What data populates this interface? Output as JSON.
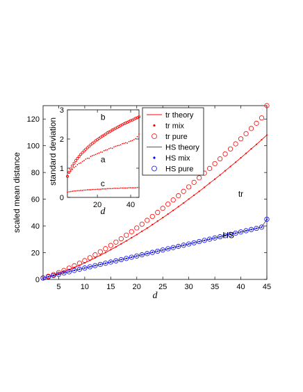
{
  "chart_data": [
    {
      "type": "scatter",
      "xlabel": "d",
      "ylabel": "scaled mean distance",
      "xlim": [
        2,
        45
      ],
      "ylim": [
        0,
        130
      ],
      "xticks": [
        5,
        10,
        15,
        20,
        25,
        30,
        35,
        40,
        45
      ],
      "yticks": [
        0,
        20,
        40,
        60,
        80,
        100,
        120
      ],
      "x": [
        2,
        3,
        4,
        5,
        6,
        7,
        8,
        9,
        10,
        11,
        12,
        13,
        14,
        15,
        16,
        17,
        18,
        19,
        20,
        21,
        22,
        23,
        24,
        25,
        26,
        27,
        28,
        29,
        30,
        31,
        32,
        33,
        34,
        35,
        36,
        37,
        38,
        39,
        40,
        41,
        42,
        43,
        44,
        45
      ],
      "series": [
        {
          "name": "tr theory",
          "style": "line",
          "color": "#ff0000",
          "values": [
            1.0,
            2.0,
            3.2,
            4.5,
            5.9,
            7.4,
            9.0,
            10.6,
            12.4,
            14.2,
            16.1,
            18.1,
            20.1,
            22.2,
            24.3,
            26.6,
            28.8,
            31.2,
            33.5,
            36.0,
            38.4,
            41.0,
            43.6,
            46.2,
            48.9,
            51.6,
            54.4,
            57.2,
            60.1,
            63.0,
            65.9,
            68.9,
            72.0,
            75.0,
            78.1,
            81.3,
            84.5,
            87.7,
            91.0,
            94.3,
            97.7,
            101.0,
            104.5,
            108.0
          ]
        },
        {
          "name": "tr mix",
          "style": "dot",
          "color": "#ff0000",
          "values": [
            1.0,
            2.0,
            3.2,
            4.5,
            5.9,
            7.4,
            9.0,
            10.6,
            12.4,
            14.2,
            16.1,
            18.1,
            20.1,
            22.2,
            24.3,
            26.6,
            28.8,
            31.2,
            33.5,
            36.0,
            38.4,
            41.0,
            43.6,
            46.2,
            48.9,
            51.6,
            54.4,
            57.2,
            60.1,
            63.0,
            65.9,
            68.9,
            72.0,
            75.0,
            78.1,
            81.3,
            84.5,
            87.7,
            91.0,
            94.3,
            97.7,
            101.0,
            104.5,
            108.0
          ]
        },
        {
          "name": "tr pure",
          "style": "circle",
          "color": "#ff0000",
          "values": [
            1.1,
            2.3,
            3.6,
            5.1,
            6.7,
            8.4,
            10.2,
            12.1,
            14.1,
            16.2,
            18.4,
            20.7,
            23.0,
            25.4,
            27.9,
            30.4,
            33.1,
            35.7,
            38.5,
            41.3,
            44.2,
            47.1,
            50.1,
            53.2,
            56.3,
            59.4,
            62.6,
            65.9,
            69.2,
            72.6,
            76.0,
            79.5,
            83.0,
            86.6,
            90.2,
            93.9,
            97.6,
            101.4,
            105.2,
            109.0,
            112.9,
            116.8,
            120.8,
            130.0
          ]
        },
        {
          "name": "HS theory",
          "style": "line",
          "color": "#555555",
          "values": [
            1.0,
            1.9,
            2.9,
            3.8,
            4.8,
            5.7,
            6.7,
            7.6,
            8.5,
            9.4,
            10.3,
            11.2,
            12.1,
            13.0,
            13.9,
            14.8,
            15.7,
            16.6,
            17.5,
            18.4,
            19.3,
            20.2,
            21.1,
            22.0,
            22.9,
            23.8,
            24.7,
            25.6,
            26.5,
            27.4,
            28.3,
            29.2,
            30.1,
            31.0,
            31.9,
            32.8,
            33.7,
            34.6,
            35.5,
            36.4,
            37.3,
            38.2,
            39.1,
            45.0
          ]
        },
        {
          "name": "HS mix",
          "style": "dot",
          "color": "#0000ff",
          "values": [
            1.0,
            1.9,
            2.9,
            3.8,
            4.8,
            5.7,
            6.7,
            7.6,
            8.5,
            9.4,
            10.3,
            11.2,
            12.1,
            13.0,
            13.9,
            14.8,
            15.7,
            16.6,
            17.5,
            18.4,
            19.3,
            20.2,
            21.1,
            22.0,
            22.9,
            23.8,
            24.7,
            25.6,
            26.5,
            27.4,
            28.3,
            29.2,
            30.1,
            31.0,
            31.9,
            32.8,
            33.7,
            34.6,
            35.5,
            36.4,
            37.3,
            38.2,
            39.1,
            45.0
          ]
        },
        {
          "name": "HS pure",
          "style": "circle",
          "color": "#0000ff",
          "values": [
            1.0,
            1.9,
            2.9,
            3.8,
            4.8,
            5.7,
            6.7,
            7.6,
            8.5,
            9.4,
            10.3,
            11.2,
            12.1,
            13.0,
            13.9,
            14.8,
            15.7,
            16.6,
            17.5,
            18.4,
            19.3,
            20.2,
            21.1,
            22.0,
            22.9,
            23.8,
            24.7,
            25.6,
            26.5,
            27.4,
            28.3,
            29.2,
            30.1,
            31.0,
            31.9,
            32.8,
            33.7,
            34.6,
            35.5,
            36.4,
            37.3,
            38.2,
            39.1,
            45.0
          ]
        }
      ],
      "annotations": [
        {
          "text": "tr",
          "x": 39.5,
          "y": 62
        },
        {
          "text": "HS",
          "x": 36.5,
          "y": 31
        }
      ],
      "legend": "top-right",
      "grid": false
    },
    {
      "type": "scatter",
      "xlabel": "d",
      "ylabel": "standard deviation",
      "xlim": [
        2,
        45
      ],
      "ylim": [
        0,
        3
      ],
      "xticks": [
        20,
        40
      ],
      "yticks": [
        0,
        1,
        2,
        3
      ],
      "x": [
        2,
        3,
        4,
        5,
        6,
        7,
        8,
        9,
        10,
        11,
        12,
        13,
        14,
        15,
        16,
        17,
        18,
        19,
        20,
        21,
        22,
        23,
        24,
        25,
        26,
        27,
        28,
        29,
        30,
        31,
        32,
        33,
        34,
        35,
        36,
        37,
        38,
        39,
        40,
        41,
        42,
        43,
        44,
        45
      ],
      "series": [
        {
          "name": "b",
          "style": "circle",
          "color": "#ff0000",
          "values": [
            0.72,
            0.86,
            0.98,
            1.08,
            1.17,
            1.26,
            1.33,
            1.4,
            1.47,
            1.53,
            1.59,
            1.65,
            1.7,
            1.75,
            1.8,
            1.85,
            1.89,
            1.94,
            1.98,
            2.02,
            2.06,
            2.1,
            2.13,
            2.17,
            2.21,
            2.24,
            2.27,
            2.31,
            2.34,
            2.37,
            2.4,
            2.43,
            2.46,
            2.49,
            2.52,
            2.55,
            2.57,
            2.6,
            2.63,
            2.65,
            2.68,
            2.71,
            2.73,
            2.76
          ]
        },
        {
          "name": "a",
          "style": "dot",
          "color": "#ff0000",
          "values": [
            0.75,
            0.83,
            0.9,
            0.96,
            1.02,
            1.06,
            1.12,
            1.16,
            1.18,
            1.23,
            1.26,
            1.31,
            1.34,
            1.34,
            1.4,
            1.43,
            1.45,
            1.47,
            1.5,
            1.52,
            1.55,
            1.55,
            1.6,
            1.62,
            1.63,
            1.67,
            1.69,
            1.68,
            1.73,
            1.75,
            1.77,
            1.78,
            1.8,
            1.84,
            1.85,
            1.87,
            1.86,
            1.91,
            1.93,
            1.95,
            1.98,
            2.01,
            2.08,
            2.17
          ]
        },
        {
          "name": "c",
          "style": "dot",
          "color": "#ff0000",
          "values": [
            0.18,
            0.19,
            0.2,
            0.21,
            0.22,
            0.22,
            0.23,
            0.23,
            0.24,
            0.24,
            0.25,
            0.25,
            0.26,
            0.26,
            0.26,
            0.27,
            0.27,
            0.27,
            0.28,
            0.28,
            0.28,
            0.29,
            0.29,
            0.29,
            0.3,
            0.3,
            0.3,
            0.3,
            0.31,
            0.31,
            0.31,
            0.31,
            0.32,
            0.32,
            0.32,
            0.32,
            0.32,
            0.33,
            0.33,
            0.33,
            0.33,
            0.33,
            0.34,
            0.34
          ]
        }
      ],
      "annotations": [
        {
          "text": "b",
          "x": 22,
          "y": 2.65
        },
        {
          "text": "a",
          "x": 22,
          "y": 1.2
        },
        {
          "text": "c",
          "x": 22,
          "y": 0.38
        }
      ],
      "grid": false
    }
  ]
}
